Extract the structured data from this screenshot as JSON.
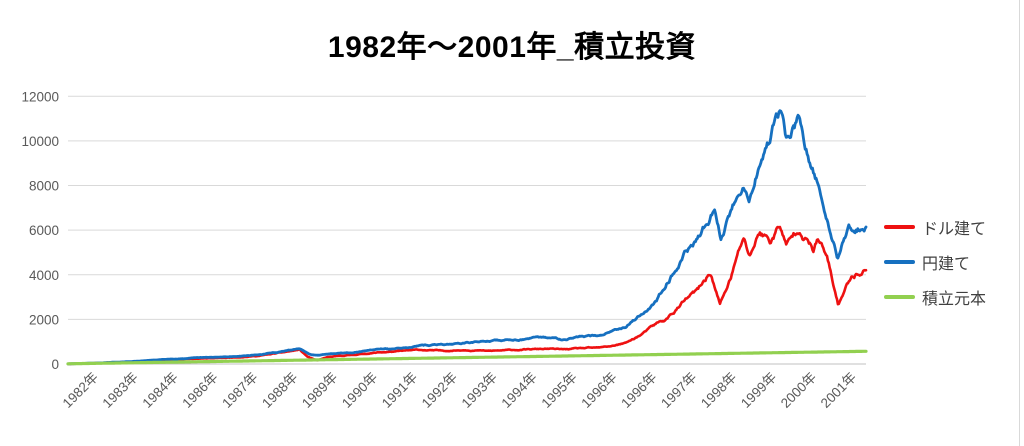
{
  "chart_data": {
    "type": "line",
    "title": "1982年〜2001年_積立投資",
    "xlabel": "",
    "ylabel": "",
    "ylim": [
      0,
      12000
    ],
    "y_ticks": [
      0,
      2000,
      4000,
      6000,
      8000,
      10000,
      12000
    ],
    "x_tick_labels": [
      "1982年",
      "1983年",
      "1984年",
      "1986年",
      "1987年",
      "1988年",
      "1989年",
      "1990年",
      "1991年",
      "1992年",
      "1993年",
      "1994年",
      "1995年",
      "1996年",
      "1996年",
      "1997年",
      "1998年",
      "1999年",
      "2000年",
      "2001年"
    ],
    "grid": "horizontal",
    "gridline_color": "#d9d9d9",
    "axis_line_color": "#c0c0c0",
    "tick_text_color": "#595959",
    "legend_position": "right",
    "series": [
      {
        "name": "ドル建て",
        "color": "#ee1111",
        "noise": 0.05,
        "seed": 11,
        "width": 2.6,
        "keypoints": [
          [
            0,
            5
          ],
          [
            0.04,
            45
          ],
          [
            0.08,
            100
          ],
          [
            0.13,
            200
          ],
          [
            0.16,
            240
          ],
          [
            0.2,
            280
          ],
          [
            0.24,
            370
          ],
          [
            0.27,
            520
          ],
          [
            0.29,
            640
          ],
          [
            0.3,
            330
          ],
          [
            0.312,
            150
          ],
          [
            0.325,
            300
          ],
          [
            0.36,
            420
          ],
          [
            0.39,
            520
          ],
          [
            0.41,
            560
          ],
          [
            0.44,
            630
          ],
          [
            0.47,
            590
          ],
          [
            0.5,
            640
          ],
          [
            0.527,
            580
          ],
          [
            0.554,
            620
          ],
          [
            0.6,
            680
          ],
          [
            0.62,
            650
          ],
          [
            0.645,
            700
          ],
          [
            0.667,
            720
          ],
          [
            0.68,
            800
          ],
          [
            0.7,
            950
          ],
          [
            0.72,
            1350
          ],
          [
            0.738,
            1800
          ],
          [
            0.75,
            2000
          ],
          [
            0.775,
            2900
          ],
          [
            0.79,
            3300
          ],
          [
            0.805,
            4100
          ],
          [
            0.817,
            2650
          ],
          [
            0.83,
            3800
          ],
          [
            0.846,
            5600
          ],
          [
            0.854,
            4850
          ],
          [
            0.867,
            5950
          ],
          [
            0.88,
            5500
          ],
          [
            0.892,
            6250
          ],
          [
            0.9,
            5250
          ],
          [
            0.917,
            6200
          ],
          [
            0.934,
            5100
          ],
          [
            0.94,
            5600
          ],
          [
            0.951,
            4750
          ],
          [
            0.965,
            2650
          ],
          [
            0.982,
            3950
          ],
          [
            1.0,
            4300
          ]
        ]
      },
      {
        "name": "円建て",
        "color": "#1670c0",
        "noise": 0.045,
        "seed": 29,
        "width": 2.8,
        "keypoints": [
          [
            0,
            5
          ],
          [
            0.04,
            50
          ],
          [
            0.08,
            110
          ],
          [
            0.13,
            225
          ],
          [
            0.16,
            270
          ],
          [
            0.2,
            315
          ],
          [
            0.24,
            420
          ],
          [
            0.27,
            560
          ],
          [
            0.29,
            690
          ],
          [
            0.302,
            430
          ],
          [
            0.315,
            380
          ],
          [
            0.33,
            480
          ],
          [
            0.36,
            540
          ],
          [
            0.39,
            680
          ],
          [
            0.405,
            660
          ],
          [
            0.42,
            740
          ],
          [
            0.44,
            810
          ],
          [
            0.47,
            870
          ],
          [
            0.5,
            950
          ],
          [
            0.527,
            1030
          ],
          [
            0.554,
            1080
          ],
          [
            0.58,
            1140
          ],
          [
            0.6,
            1170
          ],
          [
            0.62,
            1120
          ],
          [
            0.645,
            1250
          ],
          [
            0.667,
            1250
          ],
          [
            0.68,
            1480
          ],
          [
            0.7,
            1750
          ],
          [
            0.72,
            2290
          ],
          [
            0.738,
            2830
          ],
          [
            0.75,
            3700
          ],
          [
            0.775,
            5080
          ],
          [
            0.79,
            5600
          ],
          [
            0.81,
            6960
          ],
          [
            0.818,
            5650
          ],
          [
            0.83,
            6800
          ],
          [
            0.846,
            8220
          ],
          [
            0.853,
            7350
          ],
          [
            0.864,
            8800
          ],
          [
            0.875,
            9600
          ],
          [
            0.892,
            11250
          ],
          [
            0.9,
            10050
          ],
          [
            0.915,
            10850
          ],
          [
            0.93,
            8800
          ],
          [
            0.94,
            7950
          ],
          [
            0.951,
            6450
          ],
          [
            0.965,
            4800
          ],
          [
            0.978,
            6100
          ],
          [
            1.0,
            6150
          ]
        ]
      },
      {
        "name": "積立元本",
        "color": "#92d050",
        "noise": 0,
        "seed": 1,
        "width": 3.2,
        "keypoints": [
          [
            0,
            10
          ],
          [
            1.0,
            570
          ]
        ]
      }
    ]
  }
}
